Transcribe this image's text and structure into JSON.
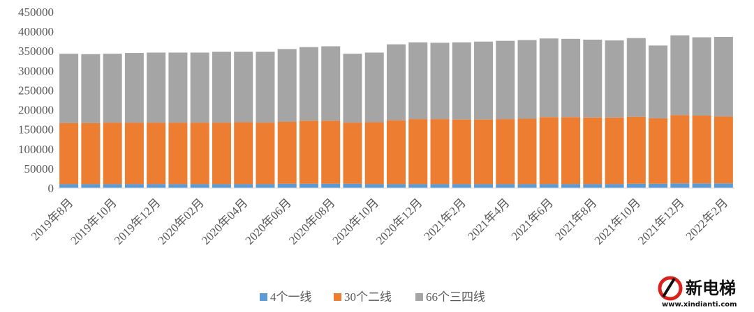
{
  "chart_data": {
    "type": "bar",
    "stacked": true,
    "title": "",
    "xlabel": "",
    "ylabel": "",
    "ylim": [
      0,
      450000
    ],
    "yticks": [
      0,
      50000,
      100000,
      150000,
      200000,
      250000,
      300000,
      350000,
      400000,
      450000
    ],
    "ytick_labels": [
      "0",
      "50000",
      "100000",
      "150000",
      "200000",
      "250000",
      "300000",
      "350000",
      "400000",
      "450000"
    ],
    "grid": false,
    "legend_position": "bottom",
    "categories": [
      "2019年8月",
      "2019年9月",
      "2019年10月",
      "2019年11月",
      "2019年12月",
      "2020年01月",
      "2020年02月",
      "2020年03月",
      "2020年04月",
      "2020年05月",
      "2020年06月",
      "2020年07月",
      "2020年08月",
      "2020年09月",
      "2020年10月",
      "2020年11月",
      "2020年12月",
      "2021年1月",
      "2021年2月",
      "2021年3月",
      "2021年4月",
      "2021年5月",
      "2021年6月",
      "2021年7月",
      "2021年8月",
      "2021年9月",
      "2021年10月",
      "2021年11月",
      "2021年12月",
      "2022年1月",
      "2022年2月"
    ],
    "x_tick_labels_shown": [
      "2019年8月",
      "2019年10月",
      "2019年12月",
      "2020年02月",
      "2020年04月",
      "2020年06月",
      "2020年08月",
      "2020年10月",
      "2020年12月",
      "2021年2月",
      "2021年4月",
      "2021年6月",
      "2021年8月",
      "2021年10月",
      "2021年12月",
      "2022年2月"
    ],
    "series": [
      {
        "name": "4个一线",
        "color": "#5B9BD5",
        "values": [
          10000,
          10000,
          10000,
          10000,
          10000,
          10000,
          10000,
          10000,
          10000,
          10000,
          11000,
          11000,
          11000,
          11000,
          10000,
          10000,
          10000,
          10000,
          10000,
          10000,
          10000,
          10000,
          10000,
          10000,
          10000,
          10000,
          11000,
          11000,
          12000,
          12000,
          12000
        ]
      },
      {
        "name": "30个二线",
        "color": "#ED7D31",
        "values": [
          156000,
          156000,
          157000,
          157000,
          157000,
          157000,
          157000,
          157000,
          158000,
          157000,
          158000,
          161000,
          161000,
          156000,
          158000,
          163000,
          166000,
          166000,
          165000,
          165000,
          166000,
          167000,
          171000,
          171000,
          170000,
          170000,
          171000,
          167000,
          174000,
          173000,
          171000
        ]
      },
      {
        "name": "66个三四线",
        "color": "#A5A5A5",
        "values": [
          177000,
          176000,
          176000,
          178000,
          179000,
          179000,
          179000,
          181000,
          180000,
          181000,
          186000,
          188000,
          190000,
          176000,
          178000,
          194000,
          196000,
          195000,
          197000,
          199000,
          200000,
          201000,
          201000,
          200000,
          199000,
          197000,
          201000,
          186000,
          204000,
          200000,
          203000
        ]
      }
    ]
  },
  "watermark": {
    "text": "新电梯",
    "url": "www.xindianti.com"
  }
}
